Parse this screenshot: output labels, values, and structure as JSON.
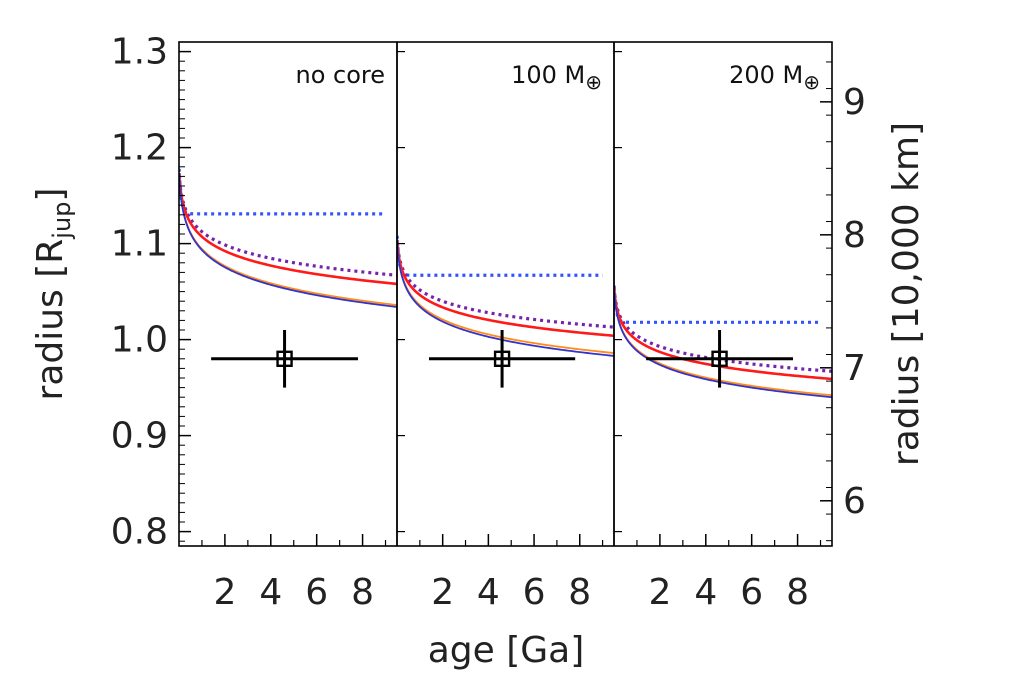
{
  "chart_data": {
    "type": "line",
    "layout": "three side-by-side panels sharing a common y axis",
    "xlabel": "age [Ga]",
    "ylabel": "radius [R_jup]",
    "ylabel_parts": {
      "main": "radius",
      "symbol": "R",
      "subscript": "jup"
    },
    "y2label": "radius [10,000 km]",
    "xlim": [
      0,
      9.5
    ],
    "ylim": [
      0.785,
      1.31
    ],
    "y2lim": [
      5.66,
      9.45
    ],
    "xticks": [
      2,
      4,
      6,
      8
    ],
    "yticks": [
      0.8,
      0.9,
      1.0,
      1.1,
      1.2,
      1.3
    ],
    "ytick_labels": [
      "0.8",
      "0.9",
      "1.0",
      "1.1",
      "1.2",
      "1.3"
    ],
    "y2ticks": [
      6,
      7,
      8,
      9
    ],
    "series_styles": [
      {
        "name": "red solid",
        "color": "#ff1a1a",
        "dash": "solid"
      },
      {
        "name": "orange solid",
        "color": "#ff8c1a",
        "dash": "solid"
      },
      {
        "name": "blue solid",
        "color": "#3333cc",
        "dash": "solid"
      },
      {
        "name": "blue dotted",
        "color": "#3355ff",
        "dash": "dotted"
      },
      {
        "name": "purple dotted",
        "color": "#7722aa",
        "dash": "dotted"
      }
    ],
    "panels": [
      {
        "label": "no core",
        "label_parts": {
          "text": "no core",
          "symbol": ""
        },
        "series": [
          {
            "name": "blue dotted",
            "start": 1.18,
            "end": 1.131,
            "x_end": 9.0,
            "shape": "fast"
          },
          {
            "name": "purple dotted",
            "start": 1.175,
            "end": 1.067,
            "x_end": 9.5,
            "shape": "log"
          },
          {
            "name": "red solid",
            "start": 1.175,
            "end": 1.058,
            "x_end": 9.5,
            "shape": "log"
          },
          {
            "name": "orange solid",
            "start": 1.175,
            "end": 1.036,
            "x_end": 9.5,
            "shape": "log"
          },
          {
            "name": "blue solid",
            "start": 1.175,
            "end": 1.034,
            "x_end": 9.5,
            "shape": "log"
          }
        ],
        "observation": {
          "age": 4.6,
          "radius": 0.98,
          "age_err": 3.2,
          "radius_err": 0.03
        }
      },
      {
        "label": "100 M⊕",
        "label_parts": {
          "text": "100 M",
          "symbol": "⊕"
        },
        "series": [
          {
            "name": "blue dotted",
            "start": 1.11,
            "end": 1.067,
            "x_end": 9.0,
            "shape": "fast"
          },
          {
            "name": "purple dotted",
            "start": 1.105,
            "end": 1.013,
            "x_end": 9.5,
            "shape": "log"
          },
          {
            "name": "red solid",
            "start": 1.105,
            "end": 1.004,
            "x_end": 9.5,
            "shape": "log"
          },
          {
            "name": "orange solid",
            "start": 1.105,
            "end": 0.986,
            "x_end": 9.5,
            "shape": "log"
          },
          {
            "name": "blue solid",
            "start": 1.105,
            "end": 0.983,
            "x_end": 9.5,
            "shape": "log"
          }
        ],
        "observation": {
          "age": 4.6,
          "radius": 0.98,
          "age_err": 3.2,
          "radius_err": 0.03
        }
      },
      {
        "label": "200 M⊕",
        "label_parts": {
          "text": "200 M",
          "symbol": "⊕"
        },
        "series": [
          {
            "name": "blue dotted",
            "start": 1.058,
            "end": 1.018,
            "x_end": 9.0,
            "shape": "fast"
          },
          {
            "name": "purple dotted",
            "start": 1.055,
            "end": 0.967,
            "x_end": 9.5,
            "shape": "log"
          },
          {
            "name": "red solid",
            "start": 1.055,
            "end": 0.959,
            "x_end": 9.5,
            "shape": "log"
          },
          {
            "name": "orange solid",
            "start": 1.055,
            "end": 0.942,
            "x_end": 9.5,
            "shape": "log"
          },
          {
            "name": "blue solid",
            "start": 1.055,
            "end": 0.94,
            "x_end": 9.5,
            "shape": "log"
          }
        ],
        "observation": {
          "age": 4.6,
          "radius": 0.98,
          "age_err": 3.2,
          "radius_err": 0.03
        }
      }
    ]
  }
}
